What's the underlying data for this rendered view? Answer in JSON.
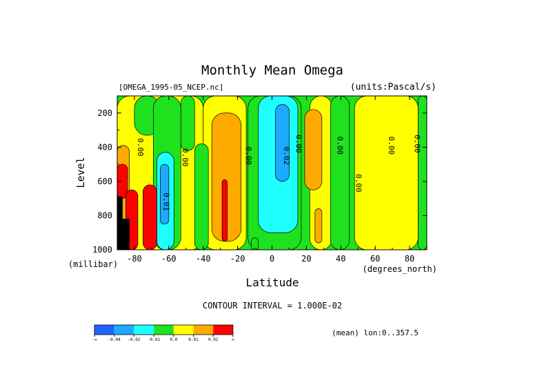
{
  "chart_data": {
    "type": "heatmap",
    "title": "Monthly Mean Omega",
    "subtitle_left": "[OMEGA_1995-05_NCEP.nc]",
    "subtitle_right": "(units:Pascal/s)",
    "xlabel": "Latitude",
    "xunits": "(degrees_north)",
    "ylabel": "Level",
    "yunits": "(millibar)",
    "xlim": [
      -90,
      90
    ],
    "ylim": [
      100,
      1000
    ],
    "y_inverted": true,
    "x_ticks": [
      -80,
      -60,
      -40,
      -20,
      0,
      20,
      40,
      60,
      80
    ],
    "y_ticks": [
      200,
      400,
      600,
      800,
      1000
    ],
    "contour_interval_text": "CONTOUR INTERVAL = 1.000E-02",
    "footer_text": "(mean) lon:0..357.5",
    "legend": {
      "placement": "bottom-left",
      "labels": [
        "-∞",
        "-0.04",
        "-0.02",
        "-0.01",
        "0.0",
        "0.01",
        "0.02",
        "∞"
      ],
      "colors": [
        "#1e64ff",
        "#1eaaff",
        "#1effff",
        "#1ee21e",
        "#ffff00",
        "#ffaa00",
        "#ff0000"
      ]
    },
    "contour_labels": [
      {
        "text": "0.00",
        "x": -78,
        "y": 400
      },
      {
        "text": "0.00",
        "x": -52,
        "y": 460
      },
      {
        "text": "0.01",
        "x": -63,
        "y": 720
      },
      {
        "text": "0.00",
        "x": -15,
        "y": 450
      },
      {
        "text": "0.02",
        "x": 7,
        "y": 450
      },
      {
        "text": "0.00",
        "x": 14,
        "y": 380
      },
      {
        "text": "0.00",
        "x": 38,
        "y": 390
      },
      {
        "text": "0.00",
        "x": 49,
        "y": 610
      },
      {
        "text": "0.00",
        "x": 68,
        "y": 390
      },
      {
        "text": "0.00",
        "x": 83,
        "y": 380
      }
    ],
    "regions": [
      {
        "level": "0.0",
        "lat": [
          -90,
          -40
        ],
        "lev": [
          100,
          1000
        ]
      },
      {
        "level": "0.0",
        "lat": [
          -40,
          -15
        ],
        "lev": [
          100,
          1000
        ]
      },
      {
        "level": "0.0",
        "lat": [
          22,
          35
        ],
        "lev": [
          100,
          1000
        ]
      },
      {
        "level": "0.0",
        "lat": [
          48,
          85
        ],
        "lev": [
          100,
          1000
        ]
      },
      {
        "level": "-0.01",
        "lat": [
          -80,
          -65
        ],
        "lev": [
          100,
          330
        ]
      },
      {
        "level": "-0.01",
        "lat": [
          -69,
          -53
        ],
        "lev": [
          100,
          1000
        ]
      },
      {
        "level": "-0.01",
        "lat": [
          -53,
          -45
        ],
        "lev": [
          100,
          420
        ]
      },
      {
        "level": "-0.01",
        "lat": [
          -45,
          -37
        ],
        "lev": [
          380,
          1000
        ]
      },
      {
        "level": "-0.01",
        "lat": [
          -14,
          17
        ],
        "lev": [
          100,
          1000
        ]
      },
      {
        "level": "-0.01",
        "lat": [
          -12,
          -8
        ],
        "lev": [
          930,
          1000
        ]
      },
      {
        "level": "-0.01",
        "lat": [
          34,
          45
        ],
        "lev": [
          100,
          1000
        ]
      },
      {
        "level": "-0.01",
        "lat": [
          85,
          90
        ],
        "lev": [
          100,
          1000
        ]
      },
      {
        "level": "-0.02",
        "lat": [
          -67,
          -57
        ],
        "lev": [
          430,
          1000
        ]
      },
      {
        "level": "-0.02",
        "lat": [
          -8,
          15
        ],
        "lev": [
          100,
          900
        ]
      },
      {
        "level": "-0.04",
        "lat": [
          -65,
          -60
        ],
        "lev": [
          500,
          850
        ]
      },
      {
        "level": "-0.04",
        "lat": [
          2,
          10
        ],
        "lev": [
          150,
          600
        ]
      },
      {
        "level": "0.01",
        "lat": [
          -35,
          -18
        ],
        "lev": [
          200,
          950
        ]
      },
      {
        "level": "0.01",
        "lat": [
          19,
          29
        ],
        "lev": [
          180,
          650
        ]
      },
      {
        "level": "0.01",
        "lat": [
          25,
          29
        ],
        "lev": [
          760,
          960
        ]
      },
      {
        "level": "0.01",
        "lat": [
          -90,
          -83
        ],
        "lev": [
          390,
          1000
        ]
      },
      {
        "level": "0.02",
        "lat": [
          -29,
          -26
        ],
        "lev": [
          590,
          950
        ]
      },
      {
        "level": "0.02",
        "lat": [
          -90,
          -84
        ],
        "lev": [
          500,
          700
        ]
      },
      {
        "level": "0.02",
        "lat": [
          -85,
          -78
        ],
        "lev": [
          650,
          1000
        ]
      },
      {
        "level": "0.02",
        "lat": [
          -75,
          -67
        ],
        "lev": [
          620,
          1000
        ]
      },
      {
        "level": "missing",
        "lat": [
          -90,
          -87
        ],
        "lev": [
          690,
          1000
        ]
      },
      {
        "level": "missing",
        "lat": [
          -87,
          -83
        ],
        "lev": [
          820,
          1000
        ]
      }
    ]
  }
}
